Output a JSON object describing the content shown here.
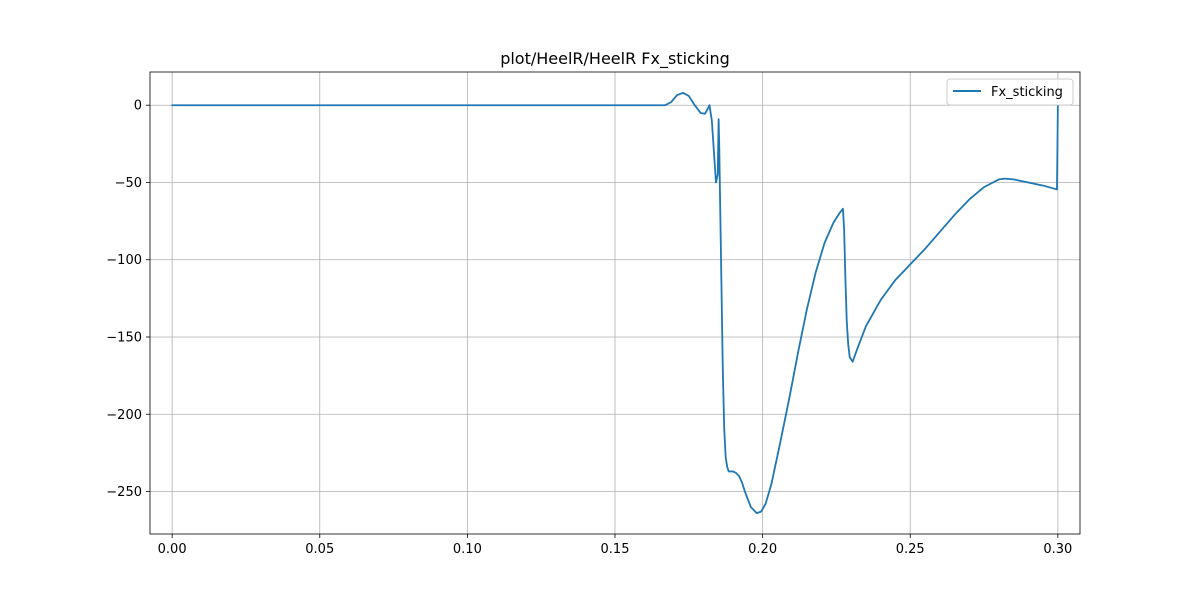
{
  "chart_data": {
    "type": "line",
    "title": "plot/HeelR/HeelR Fx_sticking",
    "xlabel": "",
    "ylabel": "",
    "xlim": [
      -0.0075,
      0.3075
    ],
    "ylim": [
      -277.5,
      21.5
    ],
    "xticks": [
      0.0,
      0.05,
      0.1,
      0.15,
      0.2,
      0.25,
      0.3
    ],
    "xtick_labels": [
      "0.00",
      "0.05",
      "0.10",
      "0.15",
      "0.20",
      "0.25",
      "0.30"
    ],
    "yticks": [
      0,
      -50,
      -100,
      -150,
      -200,
      -250
    ],
    "ytick_labels": [
      "0",
      "−50",
      "−100",
      "−150",
      "−200",
      "−250"
    ],
    "grid": true,
    "legend_position": "upper right",
    "series": [
      {
        "name": "Fx_sticking",
        "color": "#1f77b4",
        "x": [
          0.0,
          0.05,
          0.1,
          0.15,
          0.167,
          0.169,
          0.171,
          0.173,
          0.175,
          0.177,
          0.179,
          0.1805,
          0.1815,
          0.182,
          0.1828,
          0.1835,
          0.1842,
          0.1848,
          0.1851,
          0.1853,
          0.1855,
          0.186,
          0.1865,
          0.187,
          0.1875,
          0.188,
          0.1885,
          0.189,
          0.19,
          0.191,
          0.192,
          0.193,
          0.194,
          0.196,
          0.198,
          0.1995,
          0.201,
          0.203,
          0.206,
          0.209,
          0.212,
          0.215,
          0.218,
          0.221,
          0.224,
          0.226,
          0.2272,
          0.2276,
          0.228,
          0.2285,
          0.229,
          0.2295,
          0.2305,
          0.232,
          0.235,
          0.24,
          0.245,
          0.25,
          0.255,
          0.26,
          0.265,
          0.27,
          0.275,
          0.28,
          0.282,
          0.285,
          0.29,
          0.295,
          0.2997,
          0.2999,
          0.3
        ],
        "y": [
          0,
          0,
          0,
          0,
          0,
          2,
          6.5,
          8,
          6,
          0,
          -5,
          -5.5,
          -2,
          0,
          -10,
          -30,
          -50,
          -45,
          -9,
          -25,
          -50,
          -110,
          -170,
          -210,
          -228,
          -234,
          -237,
          -237,
          -237,
          -238,
          -240,
          -244,
          -250,
          -260,
          -264,
          -263,
          -258,
          -245,
          -218,
          -190,
          -160,
          -132,
          -108,
          -89,
          -76,
          -70,
          -67,
          -80,
          -110,
          -140,
          -155,
          -163,
          -166,
          -158,
          -143,
          -126,
          -113,
          -103,
          -93,
          -82,
          -71,
          -61,
          -53,
          -48,
          -47.5,
          -48,
          -50,
          -52,
          -54.5,
          -20,
          0
        ]
      }
    ]
  }
}
